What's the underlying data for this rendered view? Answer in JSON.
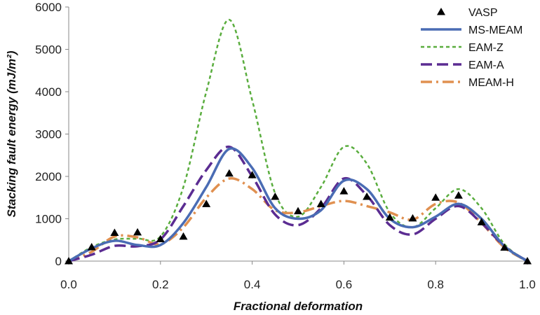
{
  "chart_data": {
    "type": "line",
    "xlabel": "Fractional deformation",
    "ylabel": "Stacking fault energy (mJ/m²)",
    "xlim": [
      0,
      1
    ],
    "ylim": [
      0,
      6000
    ],
    "x_ticks": [
      "0.0",
      "0.2",
      "0.4",
      "0.6",
      "0.8",
      "1.0"
    ],
    "y_ticks": [
      "0",
      "1000",
      "2000",
      "3000",
      "4000",
      "5000",
      "6000"
    ],
    "grid": false,
    "legend_position": "top-right",
    "series": [
      {
        "name": "VASP",
        "kind": "markers",
        "marker": "triangle",
        "color": "#000000",
        "x": [
          0,
          0.05,
          0.1,
          0.15,
          0.2,
          0.25,
          0.3,
          0.35,
          0.4,
          0.45,
          0.5,
          0.55,
          0.6,
          0.65,
          0.7,
          0.75,
          0.8,
          0.85,
          0.9,
          0.95,
          1.0
        ],
        "y": [
          0,
          330,
          670,
          680,
          520,
          580,
          1350,
          2070,
          2030,
          1520,
          1180,
          1350,
          1650,
          1520,
          1030,
          1010,
          1500,
          1550,
          920,
          320,
          0
        ]
      },
      {
        "name": "MS-MEAM",
        "kind": "line",
        "style": "solid",
        "color": "#4a6cb4",
        "x": [
          0,
          0.05,
          0.1,
          0.15,
          0.2,
          0.25,
          0.3,
          0.35,
          0.4,
          0.45,
          0.5,
          0.55,
          0.6,
          0.65,
          0.7,
          0.75,
          0.8,
          0.85,
          0.9,
          0.95,
          1.0
        ],
        "y": [
          0,
          300,
          480,
          380,
          380,
          900,
          1750,
          2650,
          2200,
          1250,
          1000,
          1200,
          1900,
          1700,
          1000,
          800,
          1050,
          1350,
          1000,
          350,
          0
        ]
      },
      {
        "name": "EAM-Z",
        "kind": "line",
        "style": "short-dash",
        "color": "#5aad3e",
        "x": [
          0,
          0.05,
          0.1,
          0.15,
          0.2,
          0.25,
          0.3,
          0.35,
          0.4,
          0.45,
          0.5,
          0.55,
          0.6,
          0.65,
          0.7,
          0.75,
          0.8,
          0.85,
          0.9,
          0.95,
          1.0
        ],
        "y": [
          0,
          330,
          510,
          530,
          580,
          1750,
          4000,
          5700,
          3800,
          1600,
          1050,
          1750,
          2700,
          2300,
          1150,
          800,
          1250,
          1700,
          1250,
          400,
          0
        ]
      },
      {
        "name": "EAM-A",
        "kind": "line",
        "style": "long-dash",
        "color": "#5b2c92",
        "x": [
          0,
          0.05,
          0.1,
          0.15,
          0.2,
          0.25,
          0.3,
          0.35,
          0.4,
          0.45,
          0.5,
          0.55,
          0.6,
          0.65,
          0.7,
          0.75,
          0.8,
          0.85,
          0.9,
          0.95,
          1.0
        ],
        "y": [
          0,
          150,
          360,
          350,
          510,
          1300,
          2150,
          2700,
          2000,
          1100,
          850,
          1250,
          1950,
          1550,
          850,
          630,
          1000,
          1300,
          900,
          350,
          0
        ]
      },
      {
        "name": "MEAM-H",
        "kind": "line",
        "style": "dash-dot",
        "color": "#e09050",
        "x": [
          0,
          0.05,
          0.1,
          0.15,
          0.2,
          0.25,
          0.3,
          0.35,
          0.4,
          0.45,
          0.5,
          0.55,
          0.6,
          0.65,
          0.7,
          0.75,
          0.8,
          0.85,
          0.9,
          0.95,
          1.0
        ],
        "y": [
          0,
          220,
          580,
          560,
          400,
          800,
          1500,
          1950,
          1700,
          1200,
          1150,
          1300,
          1420,
          1300,
          1150,
          980,
          1350,
          1380,
          900,
          320,
          0
        ]
      }
    ]
  }
}
